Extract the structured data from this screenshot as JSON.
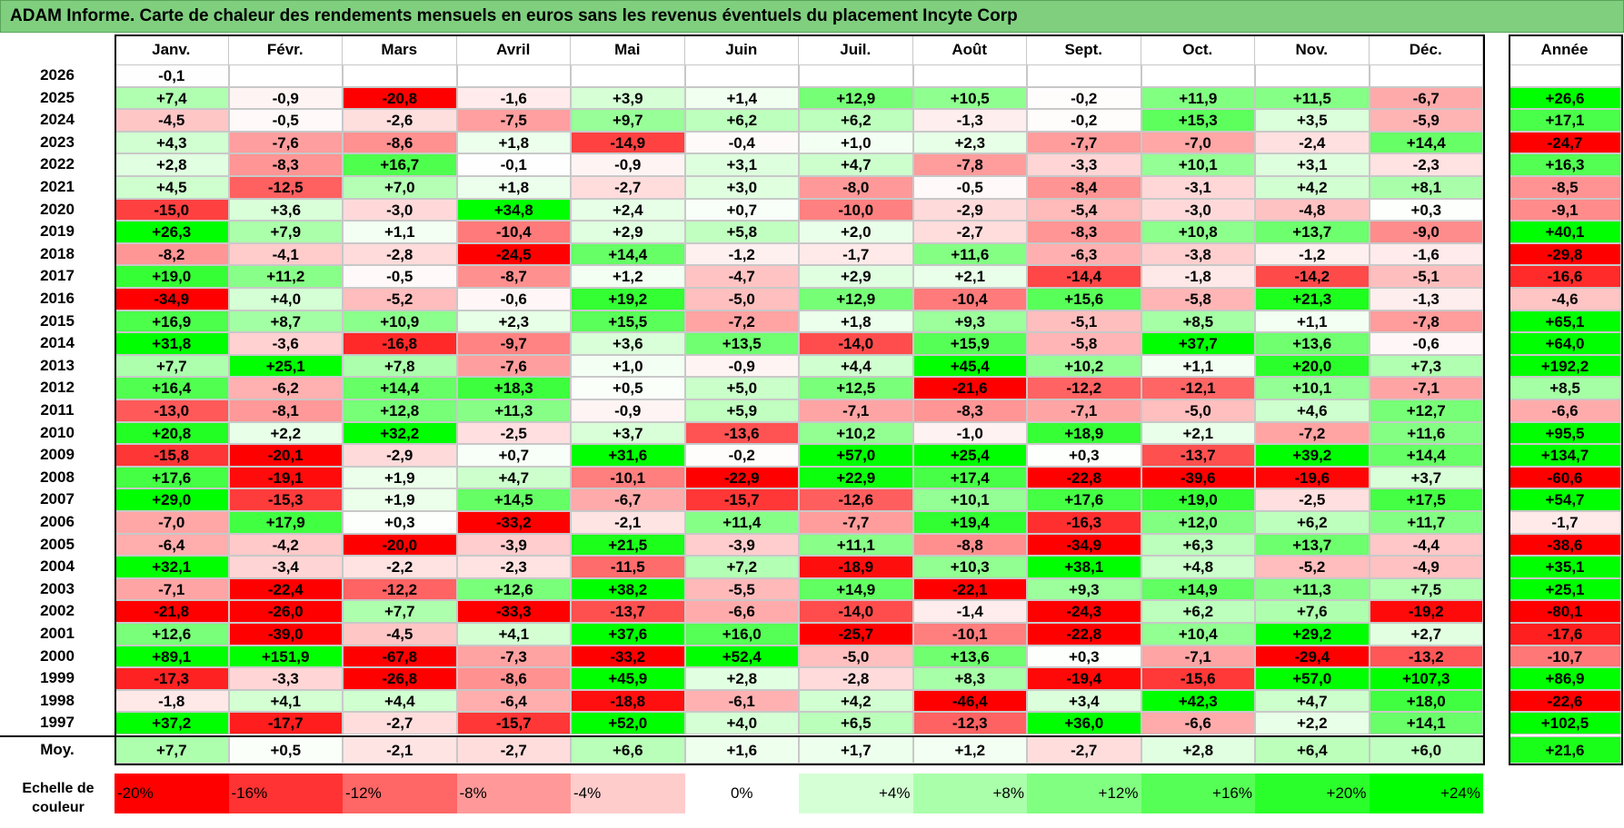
{
  "title": "ADAM Informe. Carte de chaleur des rendements mensuels en euros sans les revenus éventuels du placement Incyte Corp",
  "chart_data": {
    "type": "heatmap",
    "months": [
      "Janv.",
      "Févr.",
      "Mars",
      "Avril",
      "Mai",
      "Juin",
      "Juil.",
      "Août",
      "Sept.",
      "Oct.",
      "Nov.",
      "Déc."
    ],
    "year_col_label": "Année",
    "rows": [
      {
        "year": "2026",
        "m": [
          "-0,1",
          "",
          "",
          "",
          "",
          "",
          "",
          "",
          "",
          "",
          "",
          ""
        ],
        "y": ""
      },
      {
        "year": "2025",
        "m": [
          "+7,4",
          "-0,9",
          "-20,8",
          "-1,6",
          "+3,9",
          "+1,4",
          "+12,9",
          "+10,5",
          "-0,2",
          "+11,9",
          "+11,5",
          "-6,7"
        ],
        "y": "+26,6"
      },
      {
        "year": "2024",
        "m": [
          "-4,5",
          "-0,5",
          "-2,6",
          "-7,5",
          "+9,7",
          "+6,2",
          "+6,2",
          "-1,3",
          "-0,2",
          "+15,3",
          "+3,5",
          "-5,9"
        ],
        "y": "+17,1"
      },
      {
        "year": "2023",
        "m": [
          "+4,3",
          "-7,6",
          "-8,6",
          "+1,8",
          "-14,9",
          "-0,4",
          "+1,0",
          "+2,3",
          "-7,7",
          "-7,0",
          "-2,4",
          "+14,4"
        ],
        "y": "-24,7"
      },
      {
        "year": "2022",
        "m": [
          "+2,8",
          "-8,3",
          "+16,7",
          "-0,1",
          "-0,9",
          "+3,1",
          "+4,7",
          "-7,8",
          "-3,3",
          "+10,1",
          "+3,1",
          "-2,3"
        ],
        "y": "+16,3"
      },
      {
        "year": "2021",
        "m": [
          "+4,5",
          "-12,5",
          "+7,0",
          "+1,8",
          "-2,7",
          "+3,0",
          "-8,0",
          "-0,5",
          "-8,4",
          "-3,1",
          "+4,2",
          "+8,1"
        ],
        "y": "-8,5"
      },
      {
        "year": "2020",
        "m": [
          "-15,0",
          "+3,6",
          "-3,0",
          "+34,8",
          "+2,4",
          "+0,7",
          "-10,0",
          "-2,9",
          "-5,4",
          "-3,0",
          "-4,8",
          "+0,3"
        ],
        "y": "-9,1"
      },
      {
        "year": "2019",
        "m": [
          "+26,3",
          "+7,9",
          "+1,1",
          "-10,4",
          "+2,9",
          "+5,8",
          "+2,0",
          "-2,7",
          "-8,3",
          "+10,8",
          "+13,7",
          "-9,0"
        ],
        "y": "+40,1"
      },
      {
        "year": "2018",
        "m": [
          "-8,2",
          "-4,1",
          "-2,8",
          "-24,5",
          "+14,4",
          "-1,2",
          "-1,7",
          "+11,6",
          "-6,3",
          "-3,8",
          "-1,2",
          "-1,6"
        ],
        "y": "-29,8"
      },
      {
        "year": "2017",
        "m": [
          "+19,0",
          "+11,2",
          "-0,5",
          "-8,7",
          "+1,2",
          "-4,7",
          "+2,9",
          "+2,1",
          "-14,4",
          "-1,8",
          "-14,2",
          "-5,1"
        ],
        "y": "-16,6"
      },
      {
        "year": "2016",
        "m": [
          "-34,9",
          "+4,0",
          "-5,2",
          "-0,6",
          "+19,2",
          "-5,0",
          "+12,9",
          "-10,4",
          "+15,6",
          "-5,8",
          "+21,3",
          "-1,3"
        ],
        "y": "-4,6"
      },
      {
        "year": "2015",
        "m": [
          "+16,9",
          "+8,7",
          "+10,9",
          "+2,3",
          "+15,5",
          "-7,2",
          "+1,8",
          "+9,3",
          "-5,1",
          "+8,5",
          "+1,1",
          "-7,8"
        ],
        "y": "+65,1"
      },
      {
        "year": "2014",
        "m": [
          "+31,8",
          "-3,6",
          "-16,8",
          "-9,7",
          "+3,6",
          "+13,5",
          "-14,0",
          "+15,9",
          "-5,8",
          "+37,7",
          "+13,6",
          "-0,6"
        ],
        "y": "+64,0"
      },
      {
        "year": "2013",
        "m": [
          "+7,7",
          "+25,1",
          "+7,8",
          "-7,6",
          "+1,0",
          "-0,9",
          "+4,4",
          "+45,4",
          "+10,2",
          "+1,1",
          "+20,0",
          "+7,3"
        ],
        "y": "+192,2"
      },
      {
        "year": "2012",
        "m": [
          "+16,4",
          "-6,2",
          "+14,4",
          "+18,3",
          "+0,5",
          "+5,0",
          "+12,5",
          "-21,6",
          "-12,2",
          "-12,1",
          "+10,1",
          "-7,1"
        ],
        "y": "+8,5"
      },
      {
        "year": "2011",
        "m": [
          "-13,0",
          "-8,1",
          "+12,8",
          "+11,3",
          "-0,9",
          "+5,9",
          "-7,1",
          "-8,3",
          "-7,1",
          "-5,0",
          "+4,6",
          "+12,7"
        ],
        "y": "-6,6"
      },
      {
        "year": "2010",
        "m": [
          "+20,8",
          "+2,2",
          "+32,2",
          "-2,5",
          "+3,7",
          "-13,6",
          "+10,2",
          "-1,0",
          "+18,9",
          "+2,1",
          "-7,2",
          "+11,6"
        ],
        "y": "+95,5"
      },
      {
        "year": "2009",
        "m": [
          "-15,8",
          "-20,1",
          "-2,9",
          "+0,7",
          "+31,6",
          "-0,2",
          "+57,0",
          "+25,4",
          "+0,3",
          "-13,7",
          "+39,2",
          "+14,4"
        ],
        "y": "+134,7"
      },
      {
        "year": "2008",
        "m": [
          "+17,6",
          "-19,1",
          "+1,9",
          "+4,7",
          "-10,1",
          "-22,9",
          "+22,9",
          "+17,4",
          "-22,8",
          "-39,6",
          "-19,6",
          "+3,7"
        ],
        "y": "-60,6"
      },
      {
        "year": "2007",
        "m": [
          "+29,0",
          "-15,3",
          "+1,9",
          "+14,5",
          "-6,7",
          "-15,7",
          "-12,6",
          "+10,1",
          "+17,6",
          "+19,0",
          "-2,5",
          "+17,5"
        ],
        "y": "+54,7"
      },
      {
        "year": "2006",
        "m": [
          "-7,0",
          "+17,9",
          "+0,3",
          "-33,2",
          "-2,1",
          "+11,4",
          "-7,7",
          "+19,4",
          "-16,3",
          "+12,0",
          "+6,2",
          "+11,7"
        ],
        "y": "-1,7"
      },
      {
        "year": "2005",
        "m": [
          "-6,4",
          "-4,2",
          "-20,0",
          "-3,9",
          "+21,5",
          "-3,9",
          "+11,1",
          "-8,8",
          "-34,9",
          "+6,3",
          "+13,7",
          "-4,4"
        ],
        "y": "-38,6"
      },
      {
        "year": "2004",
        "m": [
          "+32,1",
          "-3,4",
          "-2,2",
          "-2,3",
          "-11,5",
          "+7,2",
          "-18,9",
          "+10,3",
          "+38,1",
          "+4,8",
          "-5,2",
          "-4,9"
        ],
        "y": "+35,1"
      },
      {
        "year": "2003",
        "m": [
          "-7,1",
          "-22,4",
          "-12,2",
          "+12,6",
          "+38,2",
          "-5,5",
          "+14,9",
          "-22,1",
          "+9,3",
          "+14,9",
          "+11,3",
          "+7,5"
        ],
        "y": "+25,1"
      },
      {
        "year": "2002",
        "m": [
          "-21,8",
          "-26,0",
          "+7,7",
          "-33,3",
          "-13,7",
          "-6,6",
          "-14,0",
          "-1,4",
          "-24,3",
          "+6,2",
          "+7,6",
          "-19,2"
        ],
        "y": "-80,1"
      },
      {
        "year": "2001",
        "m": [
          "+12,6",
          "-39,0",
          "-4,5",
          "+4,1",
          "+37,6",
          "+16,0",
          "-25,7",
          "-10,1",
          "-22,8",
          "+10,4",
          "+29,2",
          "+2,7"
        ],
        "y": "-17,6"
      },
      {
        "year": "2000",
        "m": [
          "+89,1",
          "+151,9",
          "-67,8",
          "-7,3",
          "-33,2",
          "+52,4",
          "-5,0",
          "+13,6",
          "+0,3",
          "-7,1",
          "-29,4",
          "-13,2"
        ],
        "y": "-10,7"
      },
      {
        "year": "1999",
        "m": [
          "-17,3",
          "-3,3",
          "-26,8",
          "-8,6",
          "+45,9",
          "+2,8",
          "-2,8",
          "+8,3",
          "-19,4",
          "-15,6",
          "+57,0",
          "+107,3"
        ],
        "y": "+86,9"
      },
      {
        "year": "1998",
        "m": [
          "-1,8",
          "+4,1",
          "+4,4",
          "-6,4",
          "-18,8",
          "-6,1",
          "+4,2",
          "-46,4",
          "+3,4",
          "+42,3",
          "+4,7",
          "+18,0"
        ],
        "y": "-22,6"
      },
      {
        "year": "1997",
        "m": [
          "+37,2",
          "-17,7",
          "-2,7",
          "-15,7",
          "+52,0",
          "+4,0",
          "+6,5",
          "-12,3",
          "+36,0",
          "-6,6",
          "+2,2",
          "+14,1"
        ],
        "y": "+102,5"
      }
    ],
    "average": {
      "label": "Moy.",
      "m": [
        "+7,7",
        "+0,5",
        "-2,1",
        "-2,7",
        "+6,6",
        "+1,6",
        "+1,7",
        "+1,2",
        "-2,7",
        "+2,8",
        "+6,4",
        "+6,0"
      ],
      "y": "+21,6"
    },
    "legend": {
      "label": "Echelle de couleur",
      "items": [
        {
          "text": "-20%",
          "value": -20
        },
        {
          "text": "-16%",
          "value": -16
        },
        {
          "text": "-12%",
          "value": -12
        },
        {
          "text": "-8%",
          "value": -8
        },
        {
          "text": "-4%",
          "value": -4
        },
        {
          "text": "0%",
          "value": 0
        },
        {
          "text": "+4%",
          "value": 4
        },
        {
          "text": "+8%",
          "value": 8
        },
        {
          "text": "+12%",
          "value": 12
        },
        {
          "text": "+16%",
          "value": 16
        },
        {
          "text": "+20%",
          "value": 20
        },
        {
          "text": "+24%",
          "value": 24
        }
      ]
    },
    "color_scale": {
      "neg_full": "#ff0000",
      "pos_full": "#00ff00",
      "neutral": "#ffffff",
      "neg_limit": -20,
      "pos_limit": 24
    }
  }
}
